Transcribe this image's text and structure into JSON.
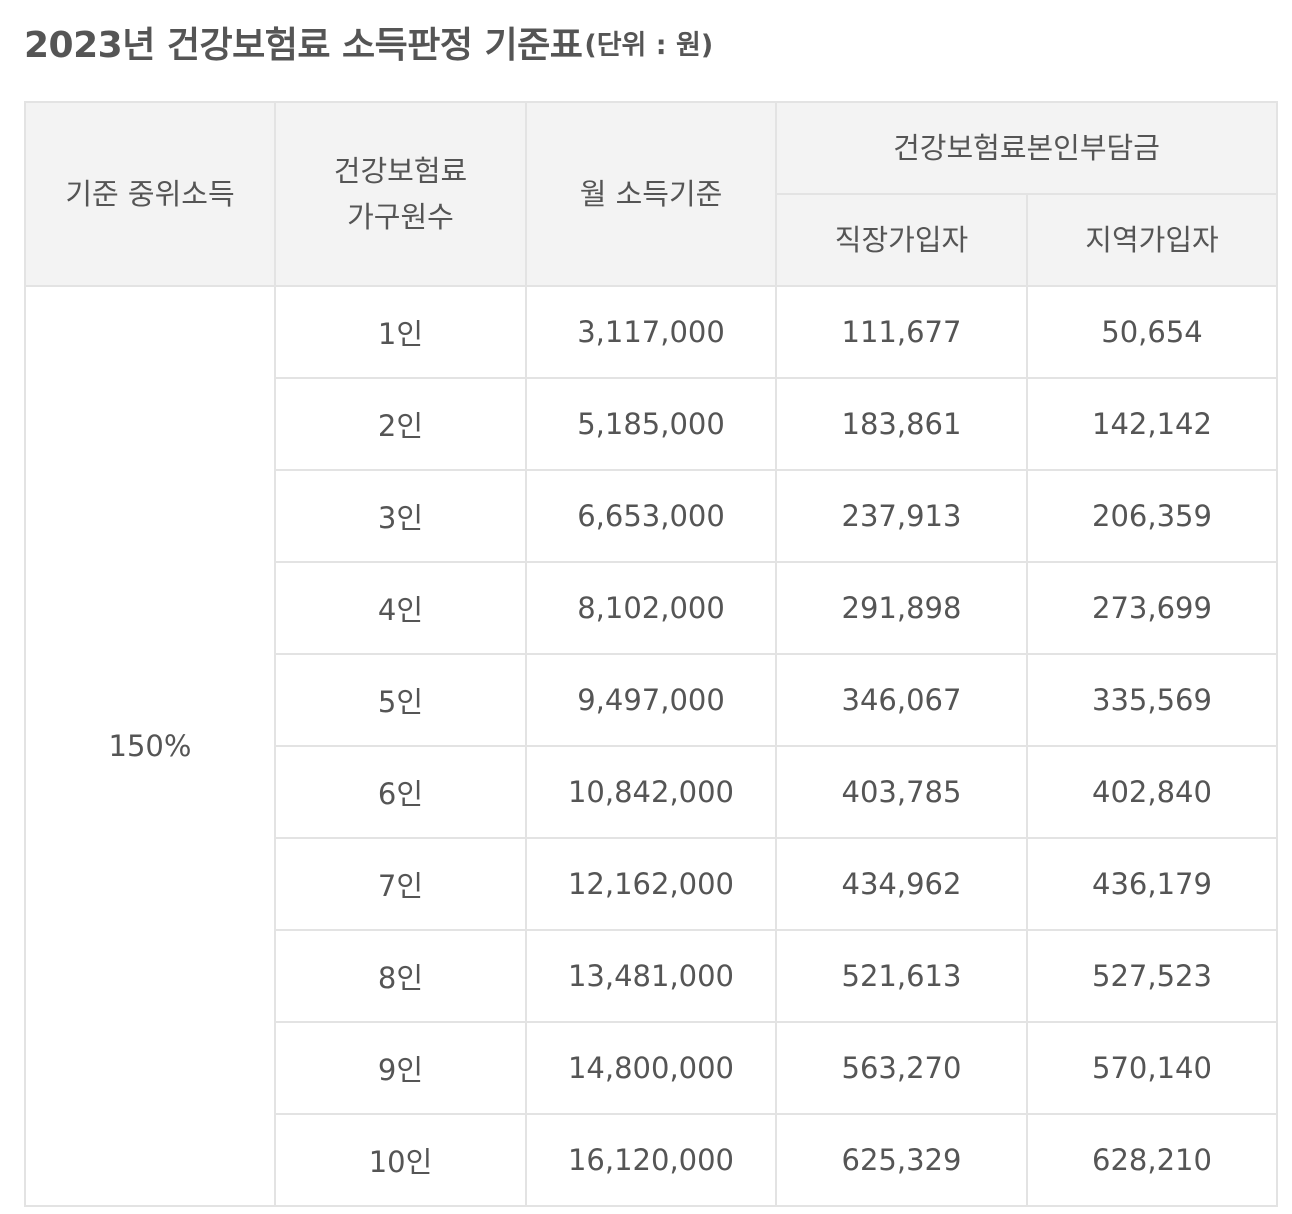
{
  "title": {
    "main": "2023년 건강보험료 소득판정 기준표",
    "unit": "(단위 : 원)"
  },
  "table": {
    "headers": {
      "median_income": "기준 중위소득",
      "household_line1": "건강보험료",
      "household_line2": "가구원수",
      "monthly_income": "월 소득기준",
      "premium_group": "건강보험료본인부담금",
      "employee": "직장가입자",
      "regional": "지역가입자"
    },
    "median_value": "150%",
    "rows": [
      {
        "household": "1인",
        "income": "3,117,000",
        "employee": "111,677",
        "regional": "50,654"
      },
      {
        "household": "2인",
        "income": "5,185,000",
        "employee": "183,861",
        "regional": "142,142"
      },
      {
        "household": "3인",
        "income": "6,653,000",
        "employee": "237,913",
        "regional": "206,359"
      },
      {
        "household": "4인",
        "income": "8,102,000",
        "employee": "291,898",
        "regional": "273,699"
      },
      {
        "household": "5인",
        "income": "9,497,000",
        "employee": "346,067",
        "regional": "335,569"
      },
      {
        "household": "6인",
        "income": "10,842,000",
        "employee": "403,785",
        "regional": "402,840"
      },
      {
        "household": "7인",
        "income": "12,162,000",
        "employee": "434,962",
        "regional": "436,179"
      },
      {
        "household": "8인",
        "income": "13,481,000",
        "employee": "521,613",
        "regional": "527,523"
      },
      {
        "household": "9인",
        "income": "14,800,000",
        "employee": "563,270",
        "regional": "570,140"
      },
      {
        "household": "10인",
        "income": "16,120,000",
        "employee": "625,329",
        "regional": "628,210"
      }
    ]
  },
  "colors": {
    "header_bg": "#f3f3f3",
    "border": "#e3e3e3",
    "highlight": "#a6f0dc",
    "text": "#555555"
  }
}
